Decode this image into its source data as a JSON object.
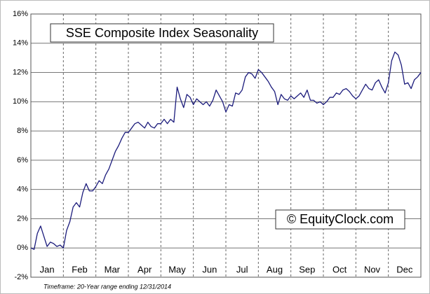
{
  "chart_data": {
    "type": "line",
    "title": "SSE Composite Index Seasonality",
    "watermark": "© EquityClock.com",
    "footnote": "Timeframe: 20-Year range ending 12/31/2014",
    "xlim": [
      0,
      12
    ],
    "xticks": [
      {
        "value": 0.5,
        "label": "Jan"
      },
      {
        "value": 1.5,
        "label": "Feb"
      },
      {
        "value": 2.5,
        "label": "Mar"
      },
      {
        "value": 3.5,
        "label": "Apr"
      },
      {
        "value": 4.5,
        "label": "May"
      },
      {
        "value": 5.5,
        "label": "Jun"
      },
      {
        "value": 6.5,
        "label": "Jul"
      },
      {
        "value": 7.5,
        "label": "Aug"
      },
      {
        "value": 8.5,
        "label": "Sep"
      },
      {
        "value": 9.5,
        "label": "Oct"
      },
      {
        "value": 10.5,
        "label": "Nov"
      },
      {
        "value": 11.5,
        "label": "Dec"
      }
    ],
    "ylim": [
      -2,
      16
    ],
    "yticks": [
      {
        "value": -2,
        "label": "-2%"
      },
      {
        "value": 0,
        "label": "0%"
      },
      {
        "value": 2,
        "label": "2%"
      },
      {
        "value": 4,
        "label": "4%"
      },
      {
        "value": 6,
        "label": "6%"
      },
      {
        "value": 8,
        "label": "8%"
      },
      {
        "value": 10,
        "label": "10%"
      },
      {
        "value": 12,
        "label": "12%"
      },
      {
        "value": 14,
        "label": "14%"
      },
      {
        "value": 16,
        "label": "16%"
      }
    ],
    "grid": true,
    "series": [
      {
        "color": "#1c1c7c",
        "x": [
          0,
          0.1,
          0.2,
          0.3,
          0.4,
          0.5,
          0.6,
          0.7,
          0.8,
          0.9,
          1,
          1.1,
          1.2,
          1.3,
          1.4,
          1.5,
          1.6,
          1.7,
          1.8,
          1.9,
          2,
          2.1,
          2.2,
          2.3,
          2.4,
          2.5,
          2.6,
          2.7,
          2.8,
          2.9,
          3,
          3.1,
          3.2,
          3.3,
          3.4,
          3.5,
          3.6,
          3.7,
          3.8,
          3.9,
          4,
          4.1,
          4.2,
          4.3,
          4.4,
          4.5,
          4.6,
          4.7,
          4.8,
          4.9,
          5,
          5.1,
          5.2,
          5.3,
          5.4,
          5.5,
          5.6,
          5.7,
          5.8,
          5.9,
          6,
          6.1,
          6.2,
          6.3,
          6.4,
          6.5,
          6.6,
          6.7,
          6.8,
          6.9,
          7,
          7.1,
          7.2,
          7.3,
          7.4,
          7.5,
          7.6,
          7.7,
          7.8,
          7.9,
          8,
          8.1,
          8.2,
          8.3,
          8.4,
          8.5,
          8.6,
          8.7,
          8.8,
          8.9,
          9,
          9.1,
          9.2,
          9.3,
          9.4,
          9.5,
          9.6,
          9.7,
          9.8,
          9.9,
          10,
          10.1,
          10.2,
          10.3,
          10.4,
          10.5,
          10.6,
          10.7,
          10.8,
          10.9,
          11,
          11.1,
          11.2,
          11.3,
          11.4,
          11.5,
          11.6,
          11.7,
          11.8,
          11.9,
          12
        ],
        "values": [
          0,
          -0.1,
          1.0,
          1.5,
          0.8,
          0.1,
          0.4,
          0.3,
          0.1,
          0.2,
          0.0,
          1.2,
          1.8,
          2.8,
          3.1,
          2.8,
          3.8,
          4.4,
          3.9,
          3.9,
          4.2,
          4.6,
          4.4,
          5.0,
          5.4,
          6.0,
          6.6,
          7.0,
          7.5,
          7.9,
          7.9,
          8.2,
          8.5,
          8.6,
          8.4,
          8.2,
          8.6,
          8.3,
          8.2,
          8.5,
          8.5,
          8.8,
          8.5,
          8.8,
          8.6,
          11.0,
          10.2,
          9.6,
          10.5,
          10.3,
          9.8,
          10.2,
          10.0,
          9.8,
          10.0,
          9.7,
          10.1,
          10.8,
          10.4,
          10.0,
          9.3,
          9.8,
          9.7,
          10.6,
          10.5,
          10.8,
          11.7,
          12.0,
          11.9,
          11.6,
          12.2,
          12.0,
          11.7,
          11.4,
          11.0,
          10.7,
          9.8,
          10.5,
          10.2,
          10.1,
          10.4,
          10.2,
          10.4,
          10.6,
          10.3,
          10.8,
          10.1,
          10.1,
          9.9,
          10.0,
          9.8,
          10.0,
          10.3,
          10.3,
          10.6,
          10.5,
          10.8,
          10.9,
          10.7,
          10.4,
          10.2,
          10.4,
          10.8,
          11.2,
          10.9,
          10.8,
          11.3,
          11.5,
          11.0,
          10.6,
          11.3,
          12.8,
          13.4,
          13.2,
          12.5,
          11.2,
          11.3,
          10.9,
          11.5,
          11.7,
          12.0
        ]
      }
    ]
  }
}
